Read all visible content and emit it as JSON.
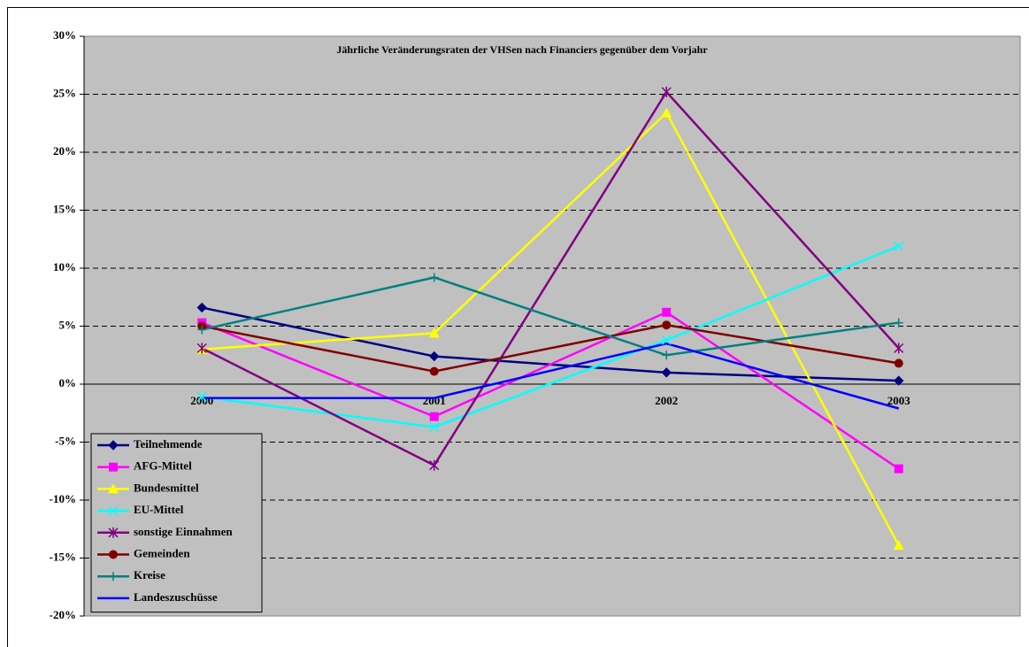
{
  "chart_data": {
    "type": "line",
    "title": "Jährliche Veränderungsraten der VHSen nach Financiers gegenüber dem Vorjahr",
    "categories": [
      "2000",
      "2001",
      "2002",
      "2003"
    ],
    "ylim": [
      -20,
      30
    ],
    "yticks": [
      {
        "value": -20,
        "label": "-20%"
      },
      {
        "value": -15,
        "label": "-15%"
      },
      {
        "value": -10,
        "label": "-10%"
      },
      {
        "value": -5,
        "label": "-5%"
      },
      {
        "value": 0,
        "label": "0%"
      },
      {
        "value": 5,
        "label": "5%"
      },
      {
        "value": 10,
        "label": "10%"
      },
      {
        "value": 15,
        "label": "15%"
      },
      {
        "value": 20,
        "label": "20%"
      },
      {
        "value": 25,
        "label": "25%"
      },
      {
        "value": 30,
        "label": "30%"
      }
    ],
    "grid": true,
    "legend": "bottom-left",
    "series": [
      {
        "name": "Teilnehmende",
        "color": "#000080",
        "marker": "diamond",
        "values": [
          6.6,
          2.4,
          1.0,
          0.3
        ]
      },
      {
        "name": "AFG-Mittel",
        "color": "#ff00ff",
        "marker": "square",
        "values": [
          5.3,
          -2.8,
          6.2,
          -7.3
        ]
      },
      {
        "name": "Bundesmittel",
        "color": "#ffff00",
        "marker": "triangle",
        "values": [
          3.0,
          4.4,
          23.4,
          -13.9
        ]
      },
      {
        "name": "EU-Mittel",
        "color": "#00ffff",
        "marker": "x",
        "values": [
          -1.1,
          -3.7,
          3.8,
          11.9
        ]
      },
      {
        "name": "sonstige Einnahmen",
        "color": "#800080",
        "marker": "star",
        "values": [
          3.1,
          -7.0,
          25.2,
          3.1
        ]
      },
      {
        "name": "Gemeinden",
        "color": "#800000",
        "marker": "circle",
        "values": [
          5.0,
          1.1,
          5.1,
          1.8
        ]
      },
      {
        "name": "Kreise",
        "color": "#008080",
        "marker": "plus",
        "values": [
          4.7,
          9.2,
          2.5,
          5.3
        ]
      },
      {
        "name": "Landeszuschüsse",
        "color": "#0000ff",
        "marker": "none",
        "values": [
          -1.2,
          -1.2,
          3.5,
          -2.1
        ]
      }
    ]
  }
}
